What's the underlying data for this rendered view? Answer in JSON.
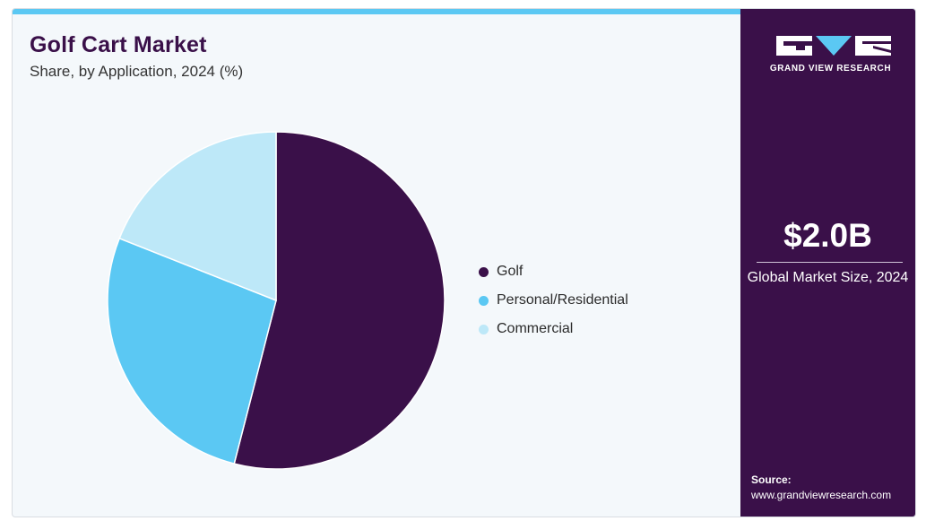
{
  "header": {
    "title": "Golf Cart Market",
    "subtitle": "Share, by Application, 2024 (%)"
  },
  "chart_data": {
    "type": "pie",
    "title": "Golf Cart Market",
    "subtitle": "Share, by Application, 2024 (%)",
    "categories": [
      "Golf",
      "Personal/Residential",
      "Commercial"
    ],
    "values": [
      54,
      27,
      19
    ],
    "colors": [
      "#3a1049",
      "#5bc8f3",
      "#bde8f8"
    ],
    "start": "12 o'clock",
    "direction": "clockwise",
    "legend_position": "right"
  },
  "sidebar": {
    "logo_text": "GRAND VIEW RESEARCH",
    "kpi_value": "$2.0B",
    "kpi_label": "Global Market Size, 2024",
    "source_label": "Source:",
    "source_url": "www.grandviewresearch.com"
  },
  "colors": {
    "brand_dark": "#3a1049",
    "accent": "#5bc8f3",
    "light_accent": "#bde8f8",
    "panel_bg": "#f4f8fb"
  }
}
